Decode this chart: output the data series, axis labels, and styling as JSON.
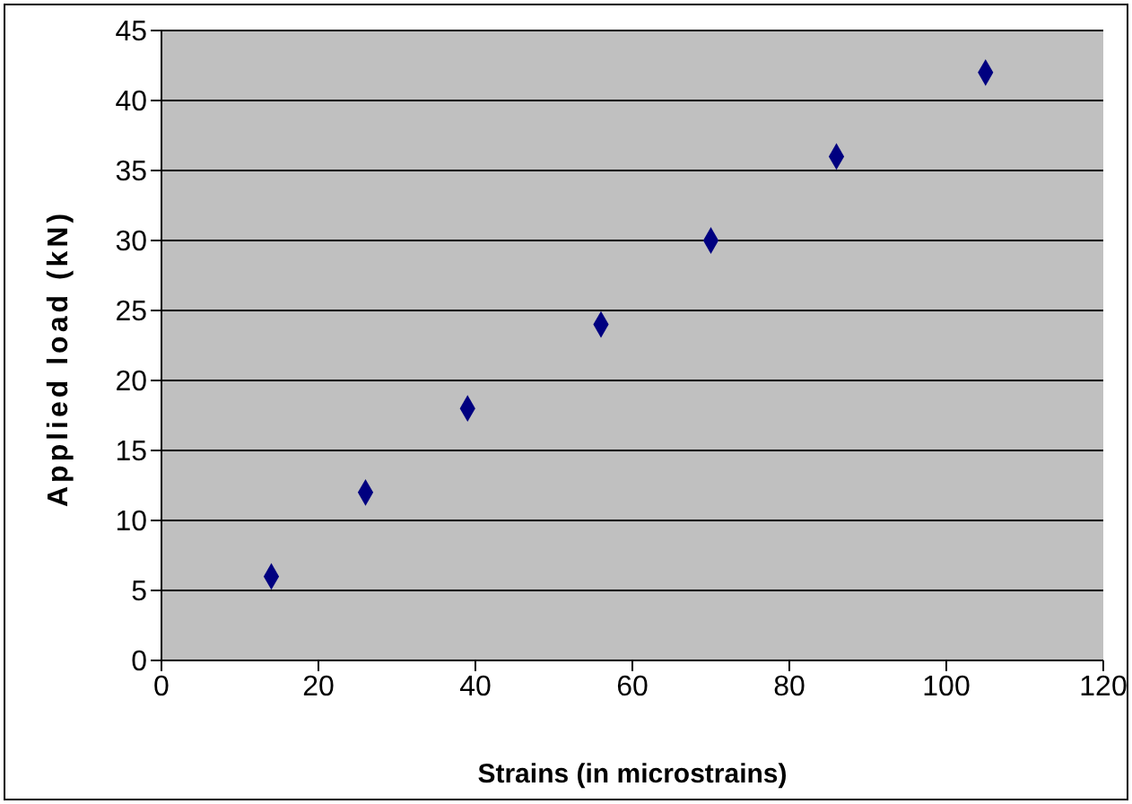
{
  "chart_data": {
    "type": "scatter",
    "xlabel": "Strains (in microstrains)",
    "ylabel": "Applied load  (kN)",
    "x": [
      14,
      26,
      39,
      56,
      70,
      86,
      105
    ],
    "series": [
      {
        "color": "#000080",
        "values": [
          6,
          12,
          18,
          24,
          30,
          36,
          42
        ]
      }
    ],
    "xlim": [
      0,
      120
    ],
    "xticks": [
      0,
      20,
      40,
      60,
      80,
      100,
      120
    ],
    "ylim": [
      0,
      45
    ],
    "yticks": [
      0,
      5,
      10,
      15,
      20,
      25,
      30,
      35,
      40,
      45
    ],
    "grid": "y",
    "marker": "diamond",
    "legend": false
  }
}
